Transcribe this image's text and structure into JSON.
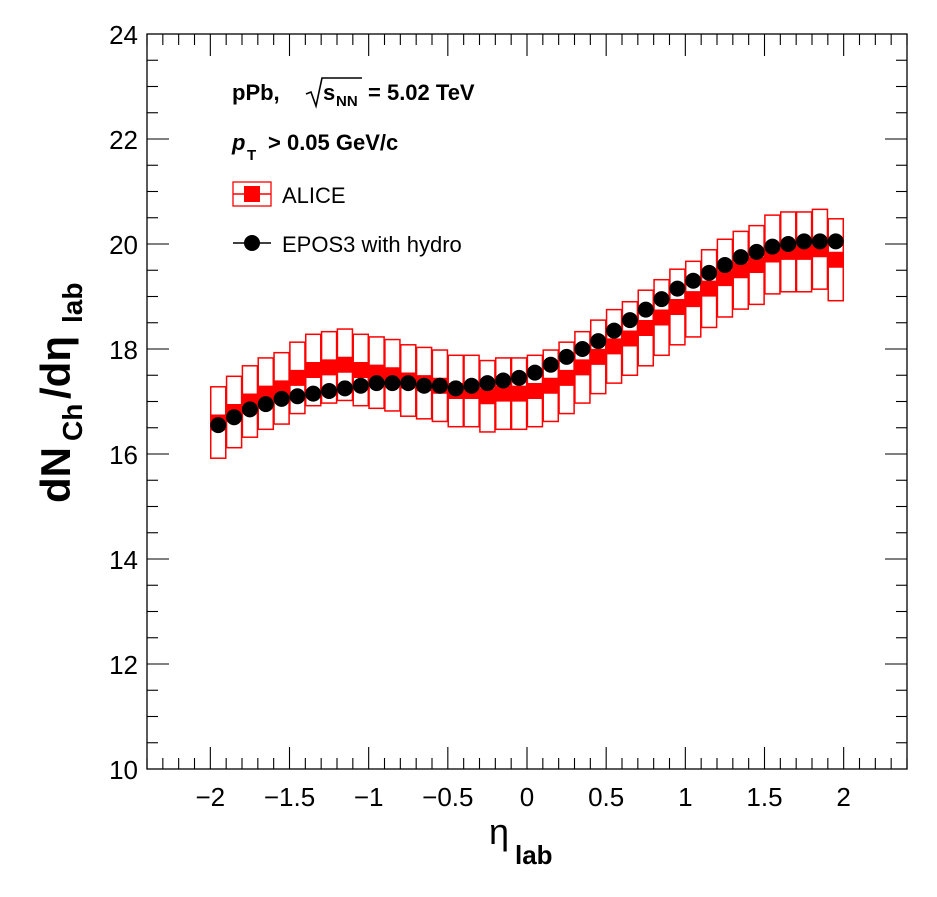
{
  "chart_data": {
    "type": "scatter",
    "xlabel": "η",
    "xlabel_sub": "lab",
    "ylabel_parts": [
      "dN",
      "Ch",
      "/dη",
      "lab"
    ],
    "xlim": [
      -2.4,
      2.4
    ],
    "ylim": [
      10,
      24
    ],
    "x_ticks": [
      -2,
      -1.5,
      -1,
      -0.5,
      0,
      0.5,
      1,
      1.5,
      2
    ],
    "x_tick_labels": [
      "−2",
      "−1.5",
      "−1",
      "−0.5",
      "0",
      "0.5",
      "1",
      "1.5",
      "2"
    ],
    "y_ticks": [
      10,
      12,
      14,
      16,
      18,
      20,
      22,
      24
    ],
    "y_tick_labels": [
      "10",
      "12",
      "14",
      "16",
      "18",
      "20",
      "22",
      "24"
    ],
    "grid": false,
    "annotations": {
      "system": "pPb,",
      "sqrt_s": "s",
      "sqrt_s_sub": "NN",
      "energy": "= 5.02 TeV",
      "pt": "p",
      "pt_sub": "T",
      "pt_cut": "> 0.05 GeV/c"
    },
    "legend_position": "top-left",
    "series": [
      {
        "name": "ALICE",
        "color": "#ff0000",
        "marker": "square",
        "x": [
          -1.95,
          -1.85,
          -1.75,
          -1.65,
          -1.55,
          -1.45,
          -1.35,
          -1.25,
          -1.15,
          -1.05,
          -0.95,
          -0.85,
          -0.75,
          -0.65,
          -0.55,
          -0.45,
          -0.35,
          -0.25,
          -0.15,
          -0.05,
          0.05,
          0.15,
          0.25,
          0.35,
          0.45,
          0.55,
          0.65,
          0.75,
          0.85,
          0.95,
          1.05,
          1.15,
          1.25,
          1.35,
          1.45,
          1.55,
          1.65,
          1.75,
          1.85,
          1.95
        ],
        "y": [
          16.6,
          16.8,
          17.0,
          17.15,
          17.25,
          17.45,
          17.6,
          17.65,
          17.7,
          17.6,
          17.55,
          17.5,
          17.4,
          17.35,
          17.3,
          17.2,
          17.2,
          17.1,
          17.15,
          17.15,
          17.2,
          17.3,
          17.45,
          17.65,
          17.85,
          18.05,
          18.2,
          18.4,
          18.6,
          18.8,
          18.95,
          19.15,
          19.35,
          19.5,
          19.6,
          19.8,
          19.85,
          19.85,
          19.9,
          19.7
        ],
        "sys_err": [
          0.68,
          0.68,
          0.68,
          0.68,
          0.68,
          0.68,
          0.68,
          0.68,
          0.68,
          0.68,
          0.68,
          0.68,
          0.68,
          0.68,
          0.68,
          0.68,
          0.68,
          0.68,
          0.68,
          0.68,
          0.68,
          0.68,
          0.68,
          0.68,
          0.7,
          0.7,
          0.7,
          0.72,
          0.72,
          0.72,
          0.72,
          0.74,
          0.74,
          0.74,
          0.75,
          0.75,
          0.76,
          0.76,
          0.76,
          0.78
        ]
      },
      {
        "name": "EPOS3 with hydro",
        "color": "#000000",
        "marker": "circle",
        "x": [
          -1.95,
          -1.85,
          -1.75,
          -1.65,
          -1.55,
          -1.45,
          -1.35,
          -1.25,
          -1.15,
          -1.05,
          -0.95,
          -0.85,
          -0.75,
          -0.65,
          -0.55,
          -0.45,
          -0.35,
          -0.25,
          -0.15,
          -0.05,
          0.05,
          0.15,
          0.25,
          0.35,
          0.45,
          0.55,
          0.65,
          0.75,
          0.85,
          0.95,
          1.05,
          1.15,
          1.25,
          1.35,
          1.45,
          1.55,
          1.65,
          1.75,
          1.85,
          1.95
        ],
        "y": [
          16.55,
          16.7,
          16.85,
          16.95,
          17.05,
          17.1,
          17.15,
          17.2,
          17.25,
          17.3,
          17.35,
          17.35,
          17.35,
          17.3,
          17.3,
          17.25,
          17.3,
          17.35,
          17.4,
          17.45,
          17.55,
          17.7,
          17.85,
          18.0,
          18.15,
          18.35,
          18.55,
          18.75,
          18.95,
          19.15,
          19.3,
          19.45,
          19.6,
          19.75,
          19.85,
          19.95,
          20.0,
          20.05,
          20.05,
          20.05
        ]
      }
    ]
  }
}
